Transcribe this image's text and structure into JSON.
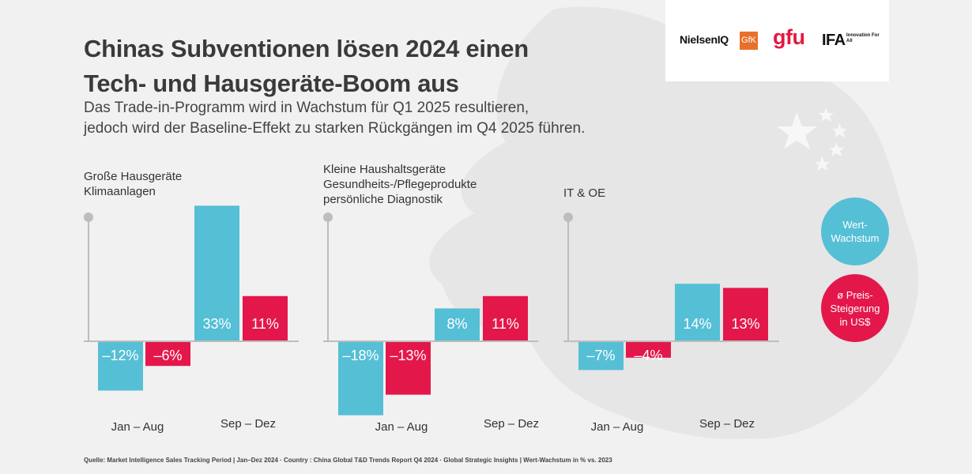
{
  "title": {
    "line1": "Chinas Subventionen lösen 2024 einen",
    "line2": "Tech- und Hausgeräte-Boom aus"
  },
  "subtitle": {
    "line1": "Das Trade-in-Programm wird in Wachstum für Q1 2025 resultieren,",
    "line2": "jedoch wird der Baseline-Effekt zu starken Rückgängen im Q4 2025  führen."
  },
  "logos": {
    "nielseniq": "NielsenIQ",
    "gfk": "GfK",
    "gfu": "gfu",
    "ifa": "IFA",
    "ifa_tagline": "Innovation For All"
  },
  "legend": {
    "wert": "Wert-Wachstum",
    "preis": "ø Preis-Steigerung in US$",
    "colors": {
      "wert": "#55bfd5",
      "preis": "#e4174b"
    }
  },
  "chart_data": [
    {
      "type": "bar",
      "label_lines": [
        "Große Hausgeräte",
        "Klimaanlagen"
      ],
      "categories": [
        "Jan – Aug",
        "Sep – Dez"
      ],
      "series": [
        {
          "name": "Wert-Wachstum",
          "values": [
            -12,
            33
          ],
          "labels": [
            "–12%",
            "33%"
          ]
        },
        {
          "name": "ø Preis-Steigerung in US$",
          "values": [
            -6,
            11
          ],
          "labels": [
            "–6%",
            "11%"
          ]
        }
      ]
    },
    {
      "type": "bar",
      "label_lines": [
        "Kleine Haushaltsgeräte",
        "Gesundheits-/Pflegeprodukte",
        "persönliche Diagnostik"
      ],
      "categories": [
        "Jan – Aug",
        "Sep – Dez"
      ],
      "series": [
        {
          "name": "Wert-Wachstum",
          "values": [
            -18,
            8
          ],
          "labels": [
            "–18%",
            "8%"
          ]
        },
        {
          "name": "ø Preis-Steigerung in US$",
          "values": [
            -13,
            11
          ],
          "labels": [
            "–13%",
            "11%"
          ]
        }
      ]
    },
    {
      "type": "bar",
      "label_lines": [
        "IT & OE"
      ],
      "categories": [
        "Jan – Aug",
        "Sep – Dez"
      ],
      "series": [
        {
          "name": "Wert-Wachstum",
          "values": [
            -7,
            14
          ],
          "labels": [
            "–7%",
            "14%"
          ]
        },
        {
          "name": "ø Preis-Steigerung in US$",
          "values": [
            -4,
            13
          ],
          "labels": [
            "–4%",
            "13%"
          ]
        }
      ]
    }
  ],
  "source": "Quelle: Market Intelligence Sales Tracking Period | Jan–Dez 2024  ·  Country : China Global T&D Trends Report Q4 2024 · Global Strategic Insights | Wert-Wachstum in % vs. 2023"
}
